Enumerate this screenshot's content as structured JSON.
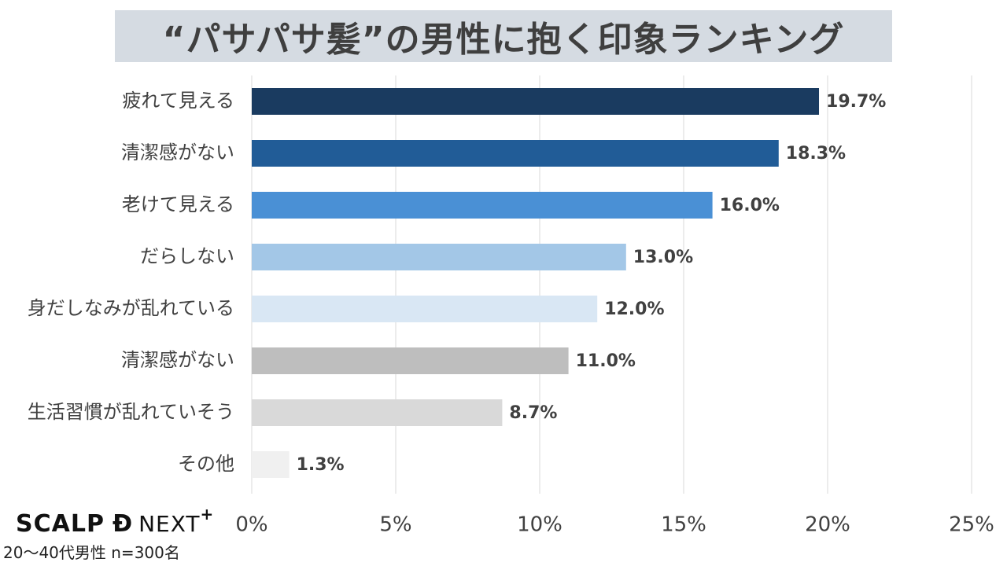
{
  "colors": {
    "title_bg": "#d5dbe2",
    "bars": [
      "#1a3b60",
      "#215c97",
      "#4a90d5",
      "#a3c7e7",
      "#d9e7f4",
      "#bebebe",
      "#d9d9d9",
      "#f0f0f0"
    ],
    "grid": "#d9d9d9"
  },
  "chart_data": {
    "type": "bar",
    "orientation": "horizontal",
    "title": "“パサパサ髪”の男性に抱く印象ランキング",
    "categories": [
      "疲れて見える",
      "清潔感がない",
      "老けて見える",
      "だらしない",
      "身だしなみが乱れている",
      "清潔感がない",
      "生活習慣が乱れていそう",
      "その他"
    ],
    "values": [
      19.7,
      18.3,
      16.0,
      13.0,
      12.0,
      11.0,
      8.7,
      1.3
    ],
    "value_labels": [
      "19.7%",
      "18.3%",
      "16.0%",
      "13.0%",
      "12.0%",
      "11.0%",
      "8.7%",
      "1.3%"
    ],
    "xlim": [
      0,
      25
    ],
    "x_ticks": [
      0,
      5,
      10,
      15,
      20,
      25
    ],
    "x_tick_labels": [
      "0%",
      "5%",
      "10%",
      "15%",
      "20%",
      "25%"
    ],
    "grid": "vertical",
    "xlabel": "",
    "ylabel": ""
  },
  "footer": {
    "logo_main": "SCALP",
    "logo_mark": "Đ",
    "logo_next": "NEXT",
    "logo_plus": "+",
    "sample_note": "20～40代男性 n=300名"
  }
}
